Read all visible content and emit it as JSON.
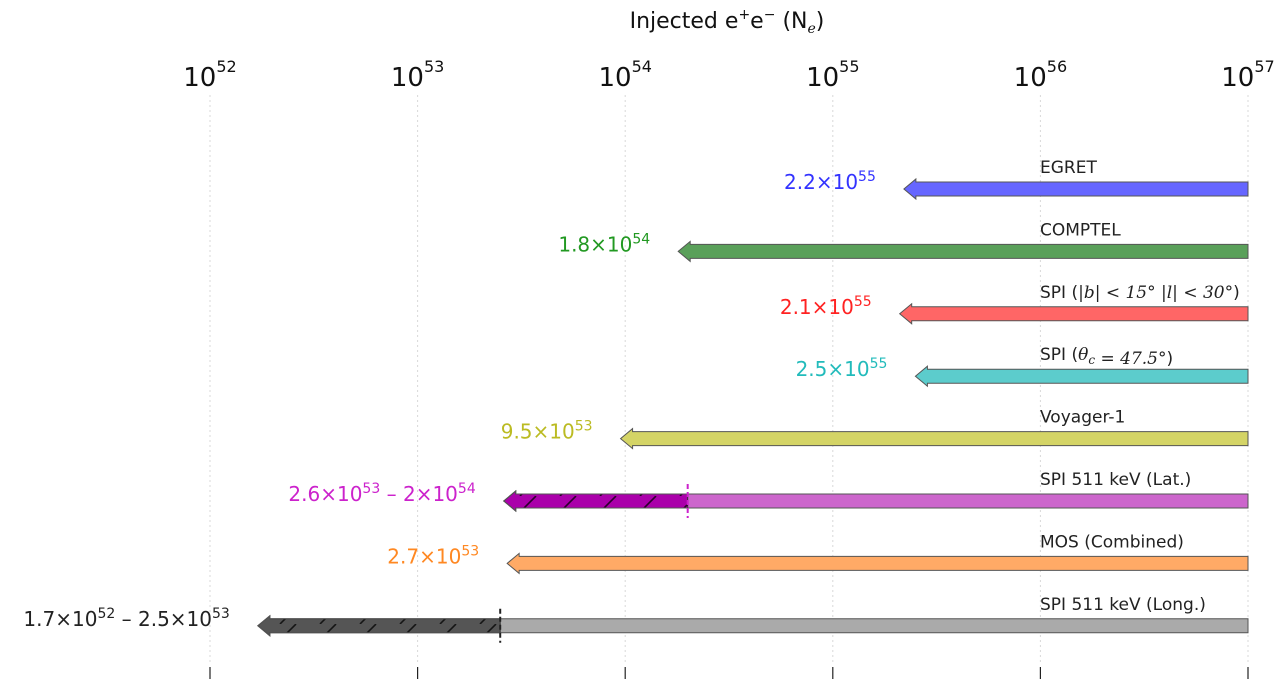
{
  "chart_data": {
    "type": "bar",
    "orientation": "horizontal",
    "style": "arrows",
    "xscale": "log",
    "xlabel": "Injected e+e− (Ne)",
    "xlabel_parts": {
      "base": "Injected e",
      "sup1": "+",
      "mid": "e",
      "sup2": "−",
      "open": " (N",
      "sub": "e",
      "close": ")"
    },
    "xlim": [
      1e+52,
      1e+57
    ],
    "x_ticks": [
      {
        "base": "10",
        "exp": "52",
        "value": 1e+52
      },
      {
        "base": "10",
        "exp": "53",
        "value": 1e+53
      },
      {
        "base": "10",
        "exp": "54",
        "value": 1e+54
      },
      {
        "base": "10",
        "exp": "55",
        "value": 1e+55
      },
      {
        "base": "10",
        "exp": "56",
        "value": 1e+56
      },
      {
        "base": "10",
        "exp": "57",
        "value": 1e+57
      }
    ],
    "grid": "vertical",
    "series": [
      {
        "name": "EGRET",
        "name_parts": [
          {
            "text": "EGRET"
          }
        ],
        "value": 2.2e+55,
        "label_parts": [
          {
            "text": "2.2×10"
          },
          {
            "text": "55",
            "sup": true
          }
        ],
        "color": "#6666ff",
        "label_color": "#3333ff"
      },
      {
        "name": "COMPTEL",
        "name_parts": [
          {
            "text": "COMPTEL"
          }
        ],
        "value": 1.8e+54,
        "label_parts": [
          {
            "text": "1.8×10"
          },
          {
            "text": "54",
            "sup": true
          }
        ],
        "color": "#5aa05a",
        "label_color": "#229922"
      },
      {
        "name": "SPI (|b| < 15° |l| < 30°)",
        "name_parts": [
          {
            "text": "SPI ("
          },
          {
            "text": "|b| < 15° |l| < 30°",
            "math": true
          },
          {
            "text": ")"
          }
        ],
        "value": 2.1e+55,
        "label_parts": [
          {
            "text": "2.1×10"
          },
          {
            "text": "55",
            "sup": true
          }
        ],
        "color": "#ff6666",
        "label_color": "#ff2222"
      },
      {
        "name": "SPI (θc = 47.5°)",
        "name_parts": [
          {
            "text": "SPI ("
          },
          {
            "text": "θ",
            "math": true
          },
          {
            "text": "c",
            "sub": true,
            "math": true
          },
          {
            "text": " = 47.5°",
            "math": true
          },
          {
            "text": ")"
          }
        ],
        "value": 2.5e+55,
        "label_parts": [
          {
            "text": "2.5×10"
          },
          {
            "text": "55",
            "sup": true
          }
        ],
        "color": "#5ccccc",
        "label_color": "#22bbbb"
      },
      {
        "name": "Voyager-1",
        "name_parts": [
          {
            "text": "Voyager-1"
          }
        ],
        "value": 9.5e+53,
        "label_parts": [
          {
            "text": "9.5×10"
          },
          {
            "text": "53",
            "sup": true
          }
        ],
        "color": "#d4d466",
        "label_color": "#bbbb22"
      },
      {
        "name": "SPI 511 keV (Lat.)",
        "name_parts": [
          {
            "text": "SPI 511 keV (Lat.)"
          }
        ],
        "value": 2.6e+53,
        "value_high": 2e+54,
        "label_parts": [
          {
            "text": "2.6×10"
          },
          {
            "text": "53",
            "sup": true
          },
          {
            "text": " – 2×10"
          },
          {
            "text": "54",
            "sup": true
          }
        ],
        "color": "#cc66cc",
        "range_color": "#aa00aa",
        "label_color": "#cc22cc",
        "divider_color": "#cc22cc"
      },
      {
        "name": "MOS (Combined)",
        "name_parts": [
          {
            "text": "MOS (Combined)"
          }
        ],
        "value": 2.7e+53,
        "label_parts": [
          {
            "text": "2.7×10"
          },
          {
            "text": "53",
            "sup": true
          }
        ],
        "color": "#ffaa66",
        "label_color": "#ff8822"
      },
      {
        "name": "SPI 511 keV (Long.)",
        "name_parts": [
          {
            "text": "SPI 511 keV (Long.)"
          }
        ],
        "value": 1.7e+52,
        "value_high": 2.5e+53,
        "label_parts": [
          {
            "text": "1.7×10"
          },
          {
            "text": "52",
            "sup": true
          },
          {
            "text": " – 2.5×10"
          },
          {
            "text": "53",
            "sup": true
          }
        ],
        "color": "#aaaaaa",
        "range_color": "#555555",
        "label_color": "#222222",
        "divider_color": "#222222"
      }
    ]
  }
}
